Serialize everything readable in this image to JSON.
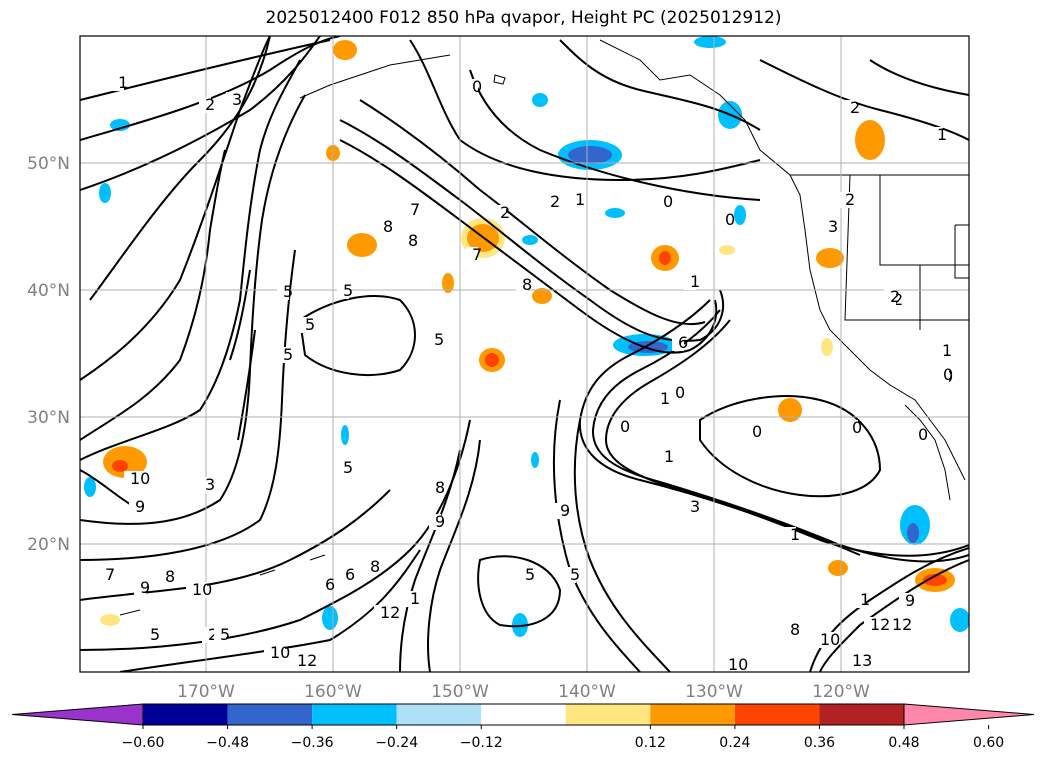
{
  "title": "2025012400 F012 850 hPa qvapor, Height PC (2025012912)",
  "map": {
    "lat_labels": [
      "50°N",
      "40°N",
      "30°N",
      "20°N"
    ],
    "lon_labels": [
      "170°W",
      "160°W",
      "150°W",
      "140°W",
      "130°W",
      "120°W"
    ],
    "contour_labels": [
      "1",
      "2",
      "3",
      "2",
      "1",
      "0",
      "0",
      "2",
      "1",
      "0",
      "2",
      "2",
      "7",
      "8",
      "8",
      "7",
      "5",
      "5",
      "5",
      "5",
      "5",
      "6",
      "8",
      "2",
      "1",
      "3",
      "1",
      "0",
      "0",
      "1",
      "1",
      "0",
      "0",
      "0",
      "3",
      "0",
      "1",
      "10",
      "9",
      "3",
      "8",
      "9",
      "5",
      "5",
      "8",
      "9",
      "5",
      "2",
      "10",
      "8",
      "9",
      "7",
      "6",
      "6",
      "5",
      "5",
      "12",
      "1",
      "10",
      "12",
      "10",
      "12",
      "1",
      "13",
      "10",
      "9",
      "12",
      "8",
      "2",
      "0"
    ]
  },
  "colorbar": {
    "colors": [
      "#9933cc",
      "#000099",
      "#3366cc",
      "#00bfff",
      "#b0e0f8",
      "#ffffff",
      "#ffe680",
      "#ff9900",
      "#ff4400",
      "#b22222",
      "#ff88aa"
    ],
    "tick_labels": [
      "−0.60",
      "−0.48",
      "−0.36",
      "−0.24",
      "−0.12",
      "0.12",
      "0.24",
      "0.36",
      "0.48",
      "0.60"
    ]
  }
}
